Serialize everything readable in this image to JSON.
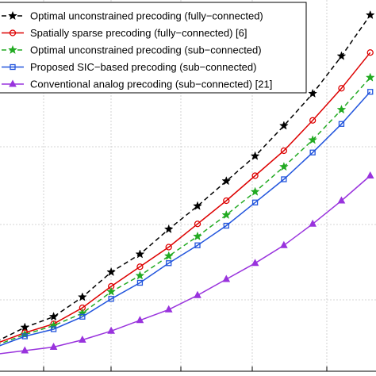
{
  "chart_data": {
    "type": "line",
    "title": "",
    "xlabel": "",
    "ylabel": "",
    "grid": true,
    "legend_position": "top-left",
    "x": [
      1,
      2,
      3,
      4,
      5,
      6,
      7,
      8,
      9,
      10,
      11,
      12,
      13,
      14
    ],
    "ylim": [
      0,
      100
    ],
    "series": [
      {
        "name": "Optimal unconstrained precoding (fully−connected)",
        "color": "#000000",
        "dash": "dashed",
        "marker": "star",
        "values": [
          6.5,
          10.5,
          13.5,
          19,
          26,
          31,
          38,
          44.5,
          51.5,
          58.5,
          67,
          76,
          86.5,
          98
        ]
      },
      {
        "name": "Spatially sparse precoding (fully−connected) [6]",
        "color": "#dd0000",
        "dash": "solid",
        "marker": "circle",
        "values": [
          6,
          9,
          11.5,
          16,
          22,
          27.5,
          33,
          39.5,
          46,
          53,
          60,
          68.5,
          77.5,
          87.5
        ]
      },
      {
        "name": "Optimal unconstrained precoding (sub−connected)",
        "color": "#22aa22",
        "dash": "dashed",
        "marker": "star",
        "values": [
          5.5,
          8.5,
          11,
          14.5,
          20.5,
          25,
          30.5,
          36,
          42,
          48.5,
          55.5,
          63,
          71.5,
          80.5
        ]
      },
      {
        "name": "Proposed SIC−based precoding (sub−connected)",
        "color": "#2255dd",
        "dash": "solid",
        "marker": "square",
        "values": [
          5,
          8,
          10,
          13.5,
          18.5,
          23,
          28.5,
          33.5,
          39,
          45.5,
          52,
          59.5,
          67.5,
          76.5
        ]
      },
      {
        "name": "Conventional analog precoding (sub−connected) [21]",
        "color": "#9933dd",
        "dash": "solid",
        "marker": "triangle",
        "values": [
          3,
          4,
          5,
          7,
          9.5,
          12.5,
          15.5,
          19.5,
          24,
          28.5,
          33.5,
          39.5,
          46,
          53
        ]
      }
    ]
  }
}
